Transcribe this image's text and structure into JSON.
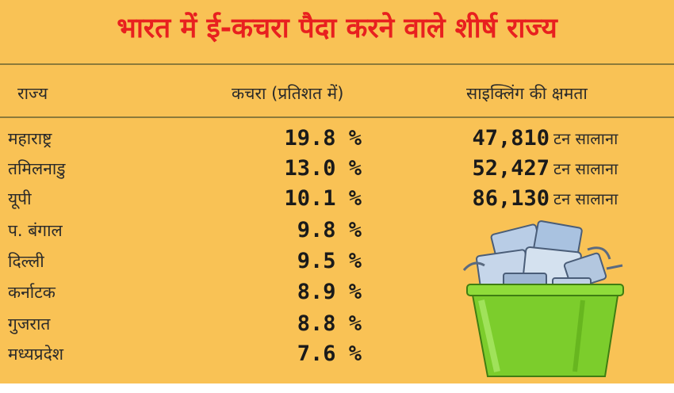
{
  "title": "भारत में ई-कचरा पैदा करने वाले शीर्ष राज्य",
  "headers": {
    "state": "राज्य",
    "waste": "कचरा (प्रतिशत में)",
    "recycling": "साइक्लिंग की क्षमता"
  },
  "rows": [
    {
      "state": "महाराष्ट्र",
      "percent": "19.8 %",
      "capacity": "47,810",
      "unit": "टन सालाना"
    },
    {
      "state": "तमिलनाडु",
      "percent": "13.0 %",
      "capacity": "52,427",
      "unit": "टन सालाना"
    },
    {
      "state": "यूपी",
      "percent": "10.1 %",
      "capacity": "86,130",
      "unit": "टन सालाना"
    },
    {
      "state": "प. बंगाल",
      "percent": "9.8 %",
      "capacity": "",
      "unit": ""
    },
    {
      "state": "दिल्ली",
      "percent": "9.5 %",
      "capacity": "",
      "unit": ""
    },
    {
      "state": "कर्नाटक",
      "percent": "8.9 %",
      "capacity": "",
      "unit": ""
    },
    {
      "state": "गुजरात",
      "percent": "8.8 %",
      "capacity": "",
      "unit": ""
    },
    {
      "state": "मध्यप्रदेश",
      "percent": "7.6 %",
      "capacity": "",
      "unit": ""
    }
  ],
  "colors": {
    "background": "#f9c255",
    "title": "#e8201f",
    "bin": "#7ccd2c"
  },
  "icons": [
    "recycle-bin-icon"
  ]
}
